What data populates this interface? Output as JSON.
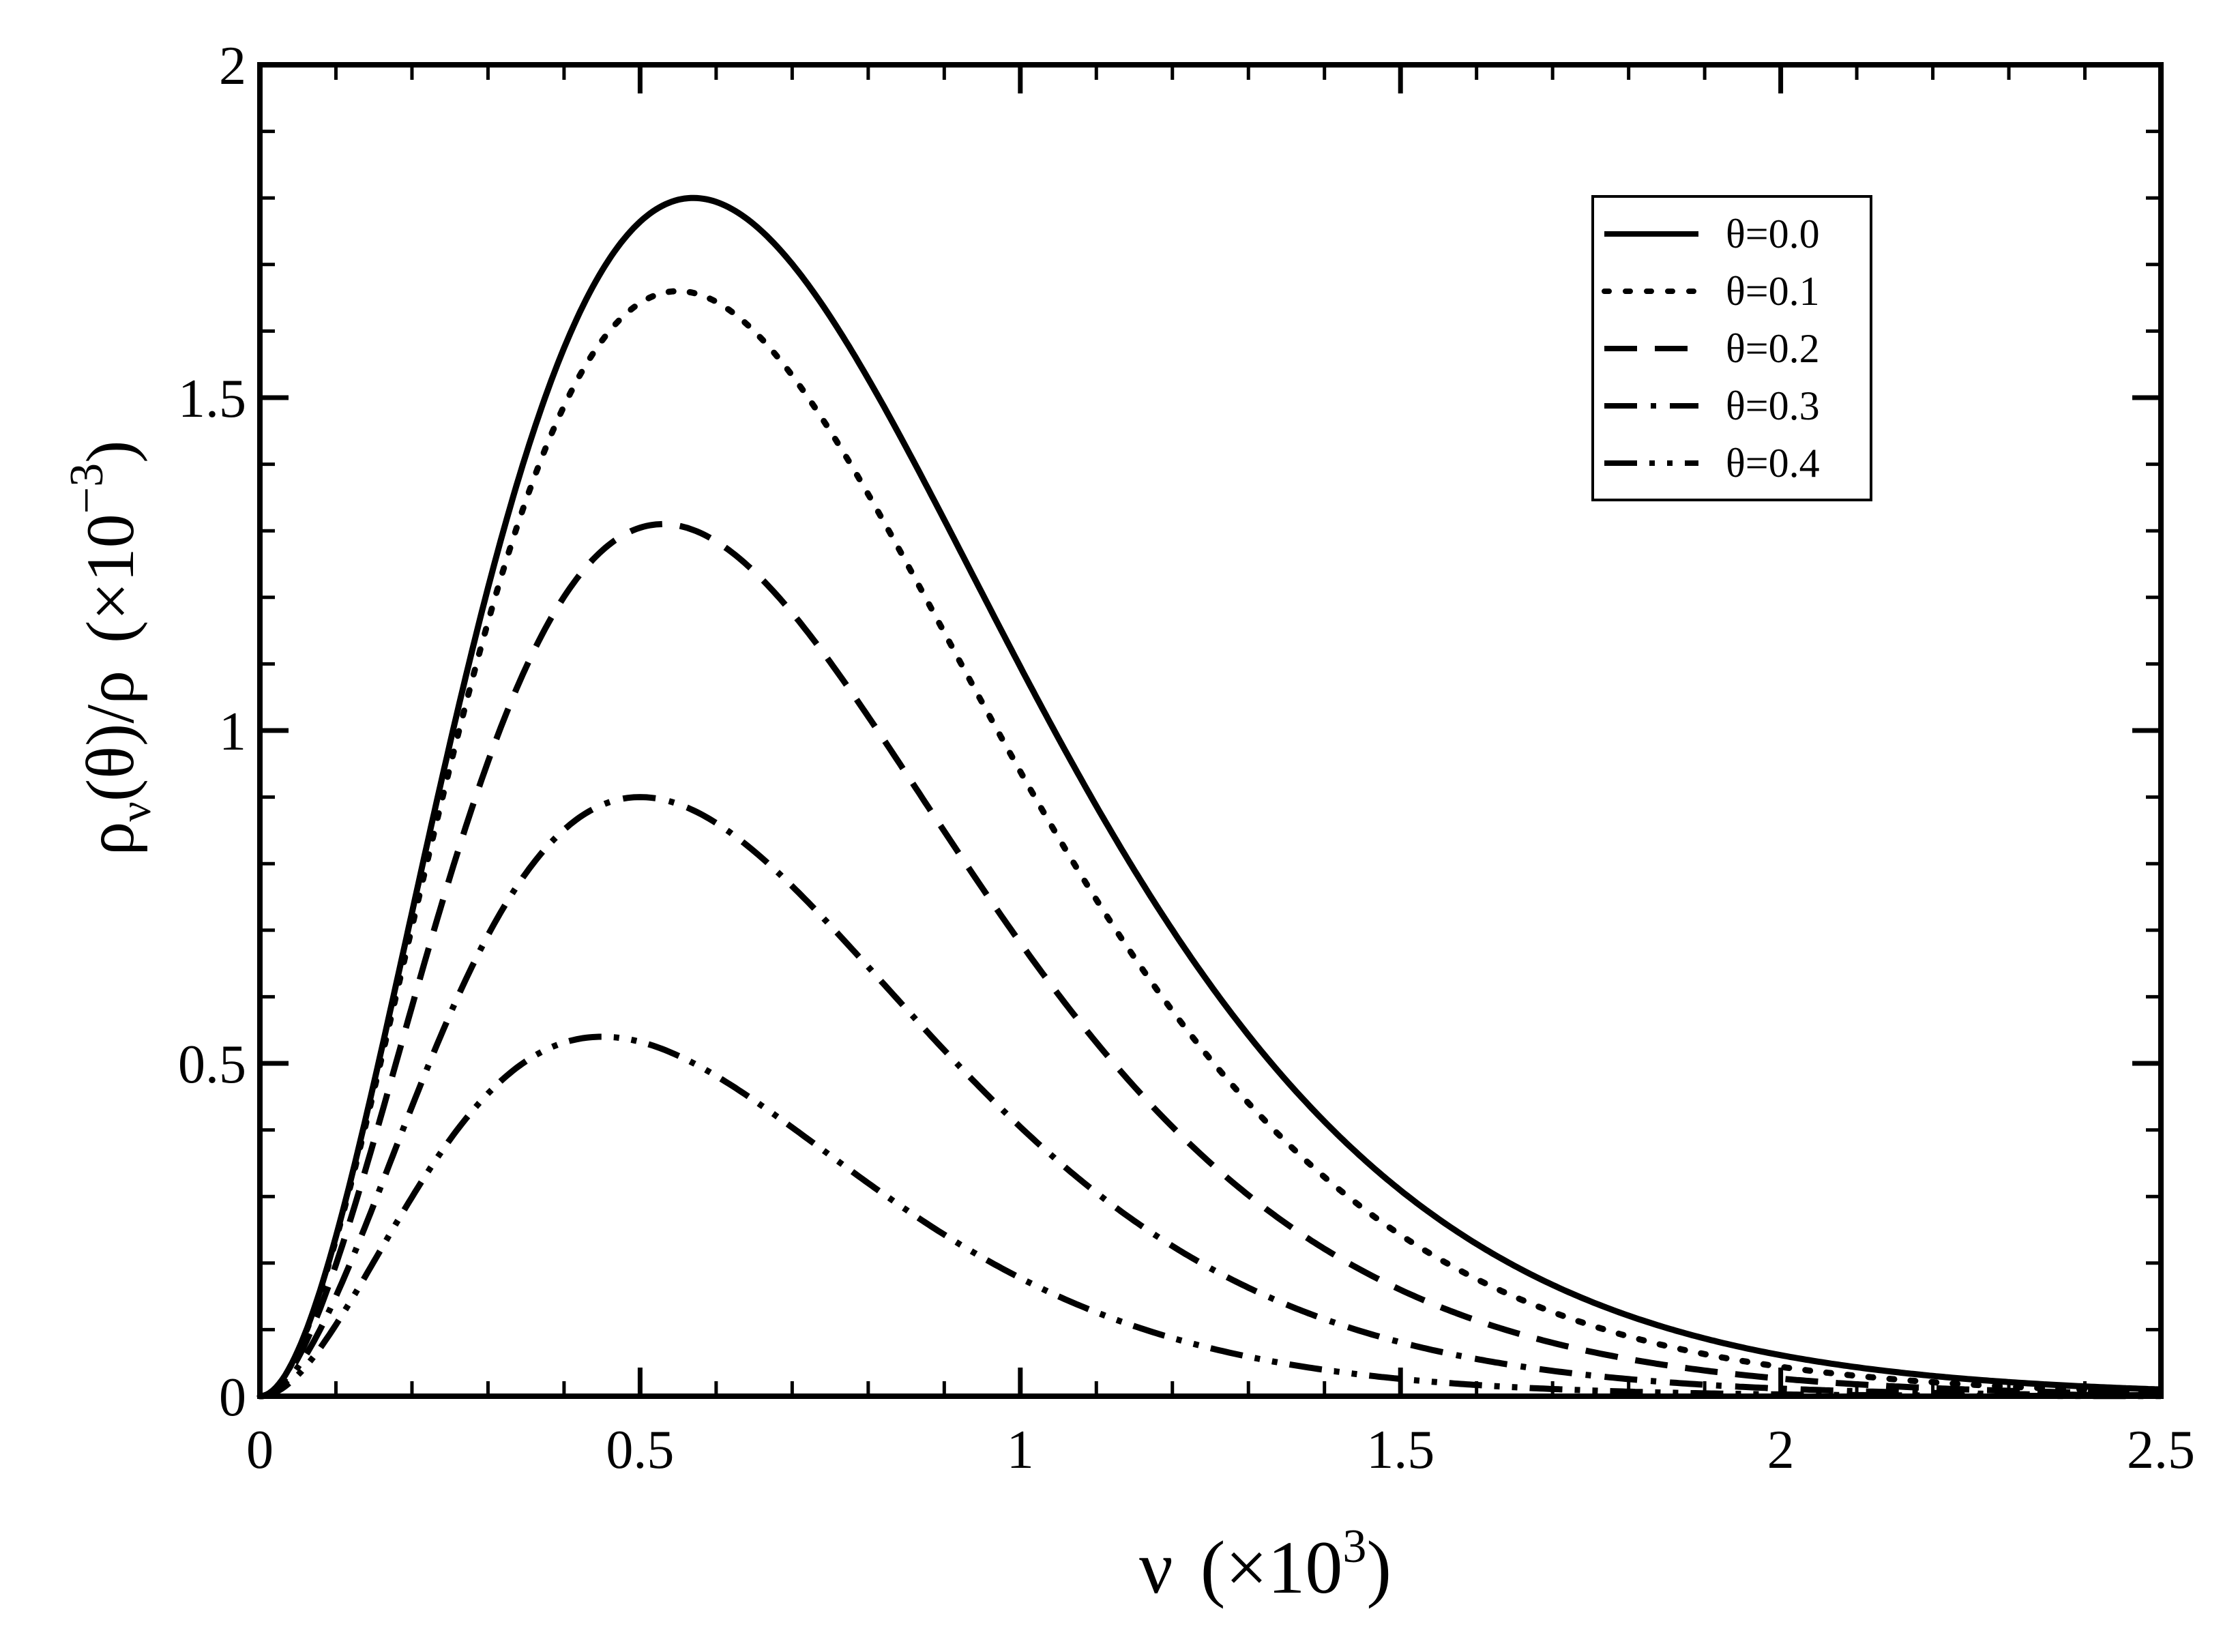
{
  "chart_data": {
    "type": "line",
    "title": "",
    "xlabel": "ν  (×10³)",
    "ylabel": "ρᵥ(θ)/ρ  (×10⁻³)",
    "xlabel_parts": {
      "symbol": "ν",
      "open": "(×10",
      "exp": "3",
      "close": ")"
    },
    "ylabel_parts": {
      "rho": "ρ",
      "sub": "ν",
      "rest": "(θ)/ρ",
      "open": "(×10",
      "exp": "−3",
      "close": ")"
    },
    "xlim": [
      0,
      2.5
    ],
    "ylim": [
      0,
      2
    ],
    "xticks": [
      "0",
      "0.5",
      "1",
      "1.5",
      "2",
      "2.5"
    ],
    "yticks": [
      "0",
      "0.5",
      "1",
      "1.5",
      "2"
    ],
    "grid": false,
    "legend_position": "top-right",
    "series": [
      {
        "name": "θ=0.0",
        "style": "solid",
        "peak_x": 0.57,
        "peak_y": 1.8
      },
      {
        "name": "θ=0.1",
        "style": "dotted",
        "peak_x": 0.55,
        "peak_y": 1.66
      },
      {
        "name": "θ=0.2",
        "style": "dashed",
        "peak_x": 0.53,
        "peak_y": 1.31
      },
      {
        "name": "θ=0.3",
        "style": "dash-dot",
        "peak_x": 0.5,
        "peak_y": 0.9
      },
      {
        "name": "θ=0.4",
        "style": "dash-dot-dot",
        "peak_x": 0.45,
        "peak_y": 0.54
      }
    ]
  }
}
